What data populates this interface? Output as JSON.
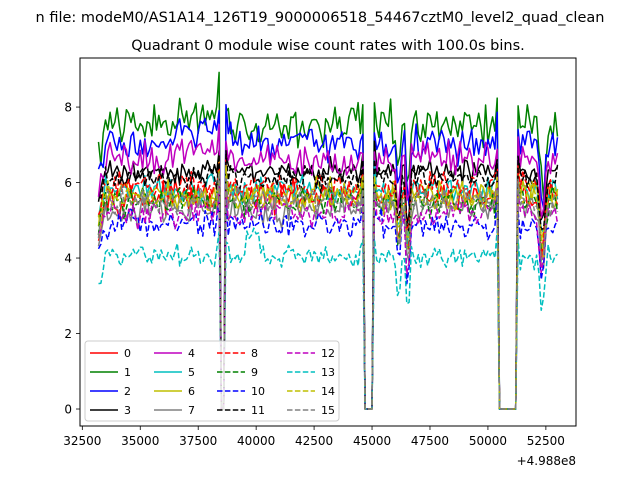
{
  "chart_data": {
    "type": "line",
    "suptitle": "n file: modeM0/AS1A14_126T19_9000006518_54467cztM0_level2_quad_clean",
    "title": "Quadrant 0 module wise count rates with 100.0s bins.",
    "xlabel": "",
    "ylabel": "",
    "x_offset_label": "+4.988e8",
    "xlim": [
      32400,
      53800
    ],
    "ylim": [
      -0.45,
      9.3
    ],
    "x_start": 33200,
    "x_end": 53000,
    "x_step": 100,
    "x_ticks": [
      32500,
      35000,
      37500,
      40000,
      42500,
      45000,
      47500,
      50000,
      52500
    ],
    "x_tick_labels": [
      "32500",
      "35000",
      "37500",
      "40000",
      "42500",
      "45000",
      "47500",
      "50000",
      "52500"
    ],
    "y_ticks": [
      0,
      2,
      4,
      6,
      8
    ],
    "y_tick_labels": [
      "0",
      "2",
      "4",
      "6",
      "8"
    ],
    "dropouts": [
      {
        "start": 38450,
        "end": 38600
      },
      {
        "start": 44650,
        "end": 45050
      },
      {
        "start": 50500,
        "end": 51200
      }
    ],
    "dips": [
      {
        "center": 46150,
        "width": 120,
        "depth": 1.5
      },
      {
        "center": 46550,
        "width": 120,
        "depth": 1.8
      },
      {
        "center": 52350,
        "width": 150,
        "depth": 1.8
      }
    ],
    "series": [
      {
        "name": "0",
        "color": "#ff0000",
        "style": "solid",
        "level": 5.6,
        "noise": 0.25
      },
      {
        "name": "1",
        "color": "#008000",
        "style": "solid",
        "level": 7.5,
        "noise": 0.35
      },
      {
        "name": "2",
        "color": "#0000ff",
        "style": "solid",
        "level": 7.0,
        "noise": 0.3
      },
      {
        "name": "3",
        "color": "#000000",
        "style": "solid",
        "level": 6.3,
        "noise": 0.2
      },
      {
        "name": "4",
        "color": "#bf00bf",
        "style": "solid",
        "level": 6.6,
        "noise": 0.3
      },
      {
        "name": "5",
        "color": "#00bfbf",
        "style": "solid",
        "level": 5.8,
        "noise": 0.25
      },
      {
        "name": "6",
        "color": "#bfbf00",
        "style": "solid",
        "level": 5.7,
        "noise": 0.25
      },
      {
        "name": "7",
        "color": "#808080",
        "style": "solid",
        "level": 5.3,
        "noise": 0.25
      },
      {
        "name": "8",
        "color": "#ff0000",
        "style": "dashed",
        "level": 5.9,
        "noise": 0.25
      },
      {
        "name": "9",
        "color": "#008000",
        "style": "dashed",
        "level": 5.5,
        "noise": 0.25
      },
      {
        "name": "10",
        "color": "#0000ff",
        "style": "dashed",
        "level": 4.9,
        "noise": 0.25
      },
      {
        "name": "11",
        "color": "#000000",
        "style": "dashed",
        "level": 6.1,
        "noise": 0.2
      },
      {
        "name": "12",
        "color": "#bf00bf",
        "style": "dashed",
        "level": 5.2,
        "noise": 0.25
      },
      {
        "name": "13",
        "color": "#00bfbf",
        "style": "dashed",
        "level": 4.05,
        "noise": 0.18
      },
      {
        "name": "14",
        "color": "#bfbf00",
        "style": "dashed",
        "level": 5.6,
        "noise": 0.25
      },
      {
        "name": "15",
        "color": "#808080",
        "style": "dashed",
        "level": 5.5,
        "noise": 0.25
      }
    ]
  }
}
